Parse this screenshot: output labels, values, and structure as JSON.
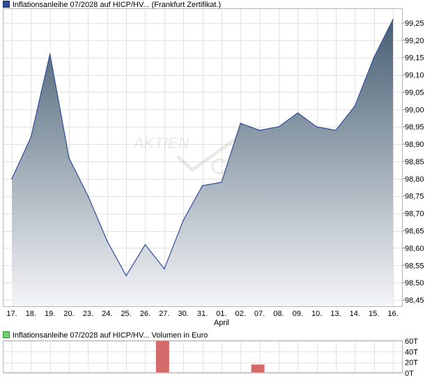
{
  "legend": {
    "price_label": "Inflationsanleihe 07/2028 auf HICP/HV... (Frankfurt Zertifikat.)",
    "volume_label": "Inflationsanleihe 07/2028 auf HICP/HV... Volumen in Euro",
    "price_color": "#2e4d96",
    "volume_color": "#6fcf6f"
  },
  "watermark": "AKTIEN",
  "chart_data": [
    {
      "type": "area",
      "categories": [
        "17.",
        "18.",
        "19.",
        "20.",
        "23.",
        "24.",
        "25.",
        "26.",
        "27.",
        "30.",
        "31.",
        "01.",
        "02.",
        "07.",
        "08.",
        "09.",
        "10.",
        "13.",
        "14.",
        "15.",
        "16."
      ],
      "month_label": "April",
      "month_label_index": 11,
      "values": [
        98.8,
        98.92,
        99.16,
        98.86,
        98.75,
        98.62,
        98.52,
        98.61,
        98.54,
        98.68,
        98.78,
        98.79,
        98.96,
        98.94,
        98.95,
        98.99,
        98.95,
        98.94,
        99.01,
        99.15,
        99.26
      ],
      "yticks": [
        "99,25",
        "99,20",
        "99,15",
        "99,10",
        "99,05",
        "99,00",
        "98,95",
        "98,90",
        "98,85",
        "98,80",
        "98,75",
        "98,70",
        "98,65",
        "98,60",
        "98,55",
        "98,50",
        "98,45"
      ],
      "ytick_values": [
        99.25,
        99.2,
        99.15,
        99.1,
        99.05,
        99.0,
        98.95,
        98.9,
        98.85,
        98.8,
        98.75,
        98.7,
        98.65,
        98.6,
        98.55,
        98.5,
        98.45
      ],
      "ylim": [
        98.43,
        99.29
      ],
      "grid": true,
      "line_color": "#2e4d96",
      "fill_top_color": "#465e72",
      "fill_bottom_color": "#f5f6f8"
    },
    {
      "type": "bar",
      "categories": [
        "17.",
        "18.",
        "19.",
        "20.",
        "23.",
        "24.",
        "25.",
        "26.",
        "27.",
        "30.",
        "31.",
        "01.",
        "02.",
        "07.",
        "08.",
        "09.",
        "10.",
        "13.",
        "14.",
        "15.",
        "16."
      ],
      "values": [
        0,
        0,
        0,
        0,
        0,
        0,
        0,
        0,
        60000,
        0,
        0,
        0,
        0,
        16000,
        0,
        0,
        0,
        0,
        0,
        0,
        0
      ],
      "yticks": [
        "60T",
        "40T",
        "20T",
        "0T"
      ],
      "ytick_values": [
        60000,
        40000,
        20000,
        0
      ],
      "ylim": [
        0,
        60000
      ],
      "grid": true,
      "bar_color": "#d46a6a"
    }
  ]
}
